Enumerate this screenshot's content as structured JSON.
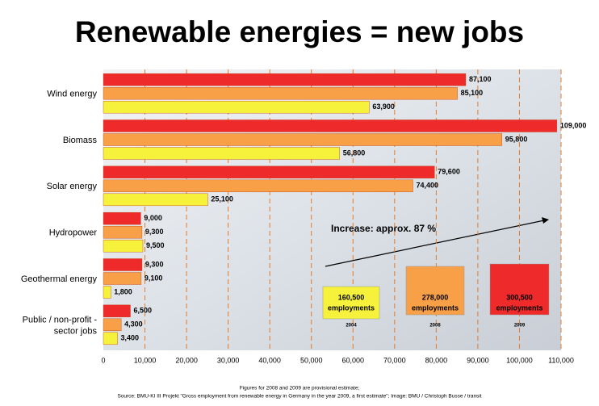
{
  "chart_data": {
    "type": "bar",
    "orientation": "horizontal",
    "title": "Renewable energies = new jobs",
    "categories": [
      "Wind energy",
      "Biomass",
      "Solar energy",
      "Hydropower",
      "Geothermal energy",
      "Public / non-profit - sector jobs"
    ],
    "series": [
      {
        "name": "2009",
        "color": "#ee2a2a",
        "values": [
          87100,
          109000,
          79600,
          9000,
          9300,
          6500
        ],
        "value_labels": [
          "87,100",
          "109,000",
          "79,600",
          "9,000",
          "9,300",
          "6,500"
        ],
        "total": {
          "value": 300500,
          "label": "300,500"
        },
        "total_caption": "employments"
      },
      {
        "name": "2008",
        "color": "#f8a048",
        "values": [
          85100,
          95800,
          74400,
          9300,
          9100,
          4300
        ],
        "value_labels": [
          "85,100",
          "95,800",
          "74,400",
          "9,300",
          "9,100",
          "4,300"
        ],
        "total": {
          "value": 278000,
          "label": "278,000"
        },
        "total_caption": "employments"
      },
      {
        "name": "2004",
        "color": "#f6f23c",
        "values": [
          63900,
          56800,
          25100,
          9500,
          1800,
          3400
        ],
        "value_labels": [
          "63,900",
          "56,800",
          "25,100",
          "9,500",
          "1,800",
          "3,400"
        ],
        "total": {
          "value": 160500,
          "label": "160,500"
        },
        "total_caption": "employments"
      }
    ],
    "xlim": [
      0,
      110000
    ],
    "xticks": [
      0,
      {
        "value": 10000,
        "label": "10,000"
      },
      {
        "value": 20000,
        "label": "20,000"
      },
      {
        "value": 30000,
        "label": "30,000"
      },
      {
        "value": 40000,
        "label": "40,000"
      },
      {
        "value": 50000,
        "label": "50,000"
      },
      {
        "value": 60000,
        "label": "60,000"
      },
      {
        "value": 70000,
        "label": "70,000"
      },
      {
        "value": 80000,
        "label": "80,000"
      },
      {
        "value": 90000,
        "label": "90,000"
      },
      {
        "value": 100000,
        "label": "100,000"
      },
      {
        "value": 110000,
        "label": "110,000"
      }
    ],
    "grid": true,
    "annotation": "Increase: approx. 87 %",
    "footnotes": [
      "Figures for 2008 and 2009 are provisional estimate;",
      "Source: BMU-KI III Projekt \"Gross employment from renewable energy in Germany in the year 2009, a first estimate\"; Image: BMU / Christoph Busse / transit"
    ]
  }
}
